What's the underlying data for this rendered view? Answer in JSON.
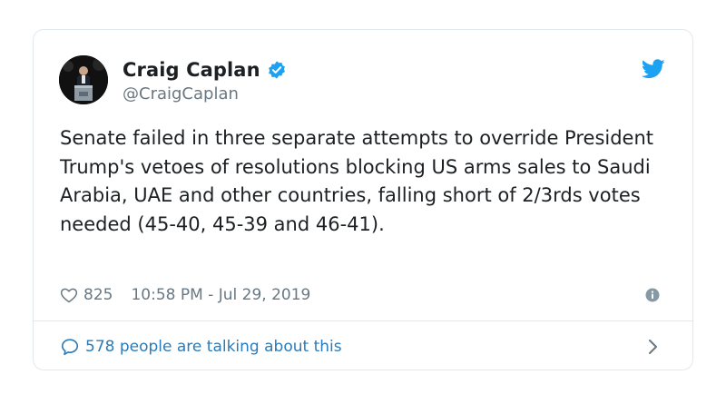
{
  "author": {
    "display_name": "Craig Caplan",
    "handle": "@CraigCaplan",
    "verified": true,
    "avatar_icon": "person-at-podium-avatar"
  },
  "tweet": {
    "text": "Senate failed in three separate attempts to override President Trump's vetoes of resolutions blocking US arms sales to Saudi Arabia, UAE and other countries, falling short of 2/3rds votes needed (45-40, 45-39 and 46-41)."
  },
  "meta": {
    "like_count": "825",
    "timestamp": "10:58 PM - Jul 29, 2019"
  },
  "footer": {
    "conversation_label": "578 people are talking about this"
  },
  "colors": {
    "twitter_blue": "#1da1f2",
    "link_blue": "#2b7bb9",
    "text_primary": "#1c2022",
    "text_secondary": "#697882",
    "border": "#e1e8ed"
  },
  "icons": [
    "verified-badge-icon",
    "twitter-bird-icon",
    "heart-icon",
    "info-icon",
    "comment-bubble-icon",
    "chevron-right-icon"
  ]
}
